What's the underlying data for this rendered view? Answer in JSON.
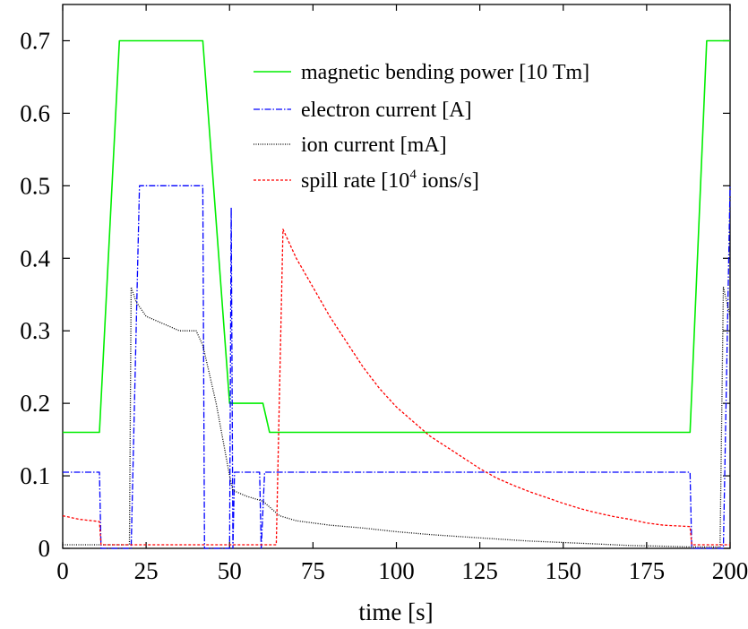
{
  "chart_data": {
    "type": "line",
    "title": "",
    "xlabel": "time [s]",
    "ylabel": "",
    "xlim": [
      0,
      200
    ],
    "ylim": [
      0,
      0.75
    ],
    "x_ticks": [
      "0",
      "25",
      "50",
      "75",
      "100",
      "125",
      "150",
      "175",
      "200"
    ],
    "y_ticks": [
      "0",
      "0.1",
      "0.2",
      "0.3",
      "0.4",
      "0.5",
      "0.6",
      "0.7"
    ],
    "grid": false,
    "legend_position": "top-right",
    "legend_labels": {
      "magnetic": "magnetic bending power [10 Tm]",
      "electron": "electron current [A]",
      "ion": "ion current [mA]",
      "spill_pre": "spill rate [10",
      "spill_sup": "4",
      "spill_post": " ions/s]"
    },
    "series": [
      {
        "name": "magnetic bending power [10 Tm]",
        "color": "#00ee00",
        "dash": "solid",
        "points": [
          [
            0,
            0.16
          ],
          [
            11,
            0.16
          ],
          [
            17,
            0.7
          ],
          [
            42,
            0.7
          ],
          [
            50,
            0.2
          ],
          [
            60,
            0.2
          ],
          [
            62,
            0.16
          ],
          [
            188,
            0.16
          ],
          [
            193,
            0.7
          ],
          [
            200,
            0.7
          ]
        ]
      },
      {
        "name": "electron current [A]",
        "color": "#0000ff",
        "dash": "dashdot",
        "points": [
          [
            0,
            0.105
          ],
          [
            11,
            0.105
          ],
          [
            11.5,
            0.0
          ],
          [
            20.5,
            0.0
          ],
          [
            23,
            0.5
          ],
          [
            42,
            0.5
          ],
          [
            42.5,
            0.0
          ],
          [
            50,
            0.0
          ],
          [
            50.5,
            0.47
          ],
          [
            51,
            0.0
          ],
          [
            51.5,
            0.105
          ],
          [
            59,
            0.105
          ],
          [
            59.5,
            0.0
          ],
          [
            60.5,
            0.105
          ],
          [
            188,
            0.105
          ],
          [
            188.5,
            0.0
          ],
          [
            198,
            0.0
          ],
          [
            200,
            0.5
          ]
        ]
      },
      {
        "name": "ion current [mA]",
        "color": "#000000",
        "dash": "dotted",
        "points": [
          [
            0,
            0.005
          ],
          [
            20,
            0.005
          ],
          [
            20.5,
            0.36
          ],
          [
            22,
            0.34
          ],
          [
            25,
            0.32
          ],
          [
            30,
            0.31
          ],
          [
            35,
            0.3
          ],
          [
            40,
            0.3
          ],
          [
            42,
            0.28
          ],
          [
            44,
            0.24
          ],
          [
            46,
            0.2
          ],
          [
            48,
            0.15
          ],
          [
            50,
            0.1
          ],
          [
            51,
            0.08
          ],
          [
            55,
            0.072
          ],
          [
            60,
            0.065
          ],
          [
            65,
            0.045
          ],
          [
            70,
            0.038
          ],
          [
            80,
            0.032
          ],
          [
            90,
            0.028
          ],
          [
            100,
            0.023
          ],
          [
            110,
            0.019
          ],
          [
            120,
            0.016
          ],
          [
            130,
            0.013
          ],
          [
            140,
            0.01
          ],
          [
            150,
            0.008
          ],
          [
            160,
            0.006
          ],
          [
            170,
            0.004
          ],
          [
            180,
            0.003
          ],
          [
            188,
            0.002
          ],
          [
            197,
            0.002
          ],
          [
            198,
            0.36
          ],
          [
            199,
            0.34
          ],
          [
            200,
            0.32
          ]
        ]
      },
      {
        "name": "spill rate [10^4 ions/s]",
        "color": "#ff0000",
        "dash": "dashed",
        "points": [
          [
            0,
            0.045
          ],
          [
            5,
            0.04
          ],
          [
            11,
            0.037
          ],
          [
            11.5,
            0.005
          ],
          [
            64,
            0.005
          ],
          [
            66,
            0.44
          ],
          [
            70,
            0.4
          ],
          [
            75,
            0.36
          ],
          [
            80,
            0.32
          ],
          [
            85,
            0.285
          ],
          [
            90,
            0.25
          ],
          [
            95,
            0.22
          ],
          [
            100,
            0.195
          ],
          [
            105,
            0.175
          ],
          [
            110,
            0.155
          ],
          [
            115,
            0.14
          ],
          [
            120,
            0.125
          ],
          [
            125,
            0.11
          ],
          [
            130,
            0.097
          ],
          [
            135,
            0.087
          ],
          [
            140,
            0.078
          ],
          [
            145,
            0.07
          ],
          [
            150,
            0.062
          ],
          [
            155,
            0.055
          ],
          [
            160,
            0.049
          ],
          [
            165,
            0.044
          ],
          [
            170,
            0.04
          ],
          [
            175,
            0.035
          ],
          [
            180,
            0.032
          ],
          [
            188,
            0.03
          ],
          [
            188.5,
            0.005
          ],
          [
            200,
            0.005
          ]
        ]
      }
    ]
  }
}
